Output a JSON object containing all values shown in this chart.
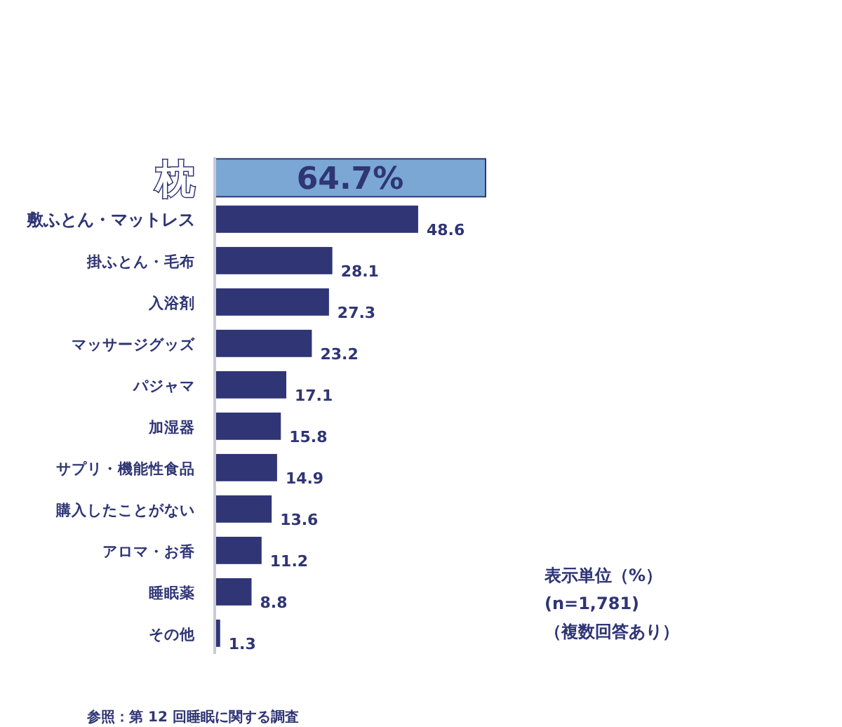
{
  "chart_data": {
    "type": "bar",
    "orientation": "horizontal",
    "categories": [
      "枕",
      "敷ふとん・マットレス",
      "掛ふとん・毛布",
      "入浴剤",
      "マッサージグッズ",
      "パジャマ",
      "加湿器",
      "サプリ・機能性食品",
      "購入したことがない",
      "アロマ・お香",
      "睡眠薬",
      "その他"
    ],
    "values": [
      64.7,
      48.6,
      28.1,
      27.3,
      23.2,
      17.1,
      15.8,
      14.9,
      13.6,
      11.2,
      8.8,
      1.3
    ],
    "colors": [
      "#7ba7d4",
      "#2f3575",
      "#2f3575",
      "#2f3575",
      "#2f3575",
      "#2f3575",
      "#2f3575",
      "#2f3575",
      "#2f3575",
      "#2f3575",
      "#2f3575",
      "#2f3575"
    ],
    "value_labels": [
      "64.7%",
      "48.6",
      "28.1",
      "27.3",
      "23.2",
      "17.1",
      "15.8",
      "14.9",
      "13.6",
      "11.2",
      "8.8",
      "1.3"
    ],
    "annotations": [
      "表示単位（%）",
      "(n=1,781)",
      "（複数回答あり）",
      "参照：第 12 回睡眠に関する調査"
    ],
    "legend": false
  }
}
